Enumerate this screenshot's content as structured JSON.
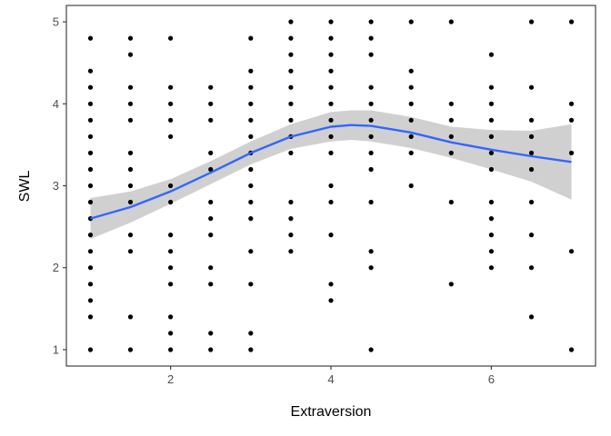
{
  "chart_data": {
    "type": "scatter",
    "xlabel": "Extraversion",
    "ylabel": "SWL",
    "xlim": [
      0.7,
      7.3
    ],
    "ylim": [
      0.8,
      5.2
    ],
    "x_ticks": [
      2,
      4,
      6
    ],
    "y_ticks": [
      1,
      2,
      3,
      4,
      5
    ],
    "grid": false,
    "colors": {
      "points": "#000000",
      "smooth_line": "#3366ff",
      "confidence_band": "#c8c8c8"
    },
    "points": [
      [
        1,
        4.8
      ],
      [
        1,
        4.4
      ],
      [
        1,
        4.2
      ],
      [
        1,
        4.0
      ],
      [
        1,
        3.8
      ],
      [
        1,
        3.6
      ],
      [
        1,
        3.4
      ],
      [
        1,
        3.2
      ],
      [
        1,
        3.0
      ],
      [
        1,
        2.8
      ],
      [
        1,
        2.6
      ],
      [
        1,
        2.4
      ],
      [
        1,
        2.2
      ],
      [
        1,
        2.0
      ],
      [
        1,
        1.8
      ],
      [
        1,
        1.6
      ],
      [
        1,
        1.4
      ],
      [
        1,
        1.0
      ],
      [
        1.5,
        4.8
      ],
      [
        1.5,
        4.6
      ],
      [
        1.5,
        4.2
      ],
      [
        1.5,
        4.0
      ],
      [
        1.5,
        3.8
      ],
      [
        1.5,
        3.4
      ],
      [
        1.5,
        3.2
      ],
      [
        1.5,
        3.0
      ],
      [
        1.5,
        2.8
      ],
      [
        1.5,
        2.4
      ],
      [
        1.5,
        2.2
      ],
      [
        1.5,
        1.4
      ],
      [
        1.5,
        1.0
      ],
      [
        2,
        4.8
      ],
      [
        2,
        4.2
      ],
      [
        2,
        4.0
      ],
      [
        2,
        3.8
      ],
      [
        2,
        3.6
      ],
      [
        2,
        3.0
      ],
      [
        2,
        2.8
      ],
      [
        2,
        2.4
      ],
      [
        2,
        2.2
      ],
      [
        2,
        2.0
      ],
      [
        2,
        1.8
      ],
      [
        2,
        1.4
      ],
      [
        2,
        1.2
      ],
      [
        2,
        1.0
      ],
      [
        2.5,
        4.2
      ],
      [
        2.5,
        4.0
      ],
      [
        2.5,
        3.8
      ],
      [
        2.5,
        3.4
      ],
      [
        2.5,
        3.2
      ],
      [
        2.5,
        2.8
      ],
      [
        2.5,
        2.6
      ],
      [
        2.5,
        2.4
      ],
      [
        2.5,
        2.0
      ],
      [
        2.5,
        1.8
      ],
      [
        2.5,
        1.2
      ],
      [
        2.5,
        1.0
      ],
      [
        3,
        4.8
      ],
      [
        3,
        4.4
      ],
      [
        3,
        4.2
      ],
      [
        3,
        4.0
      ],
      [
        3,
        3.8
      ],
      [
        3,
        3.6
      ],
      [
        3,
        3.4
      ],
      [
        3,
        3.2
      ],
      [
        3,
        3.0
      ],
      [
        3,
        2.8
      ],
      [
        3,
        2.6
      ],
      [
        3,
        2.2
      ],
      [
        3,
        1.8
      ],
      [
        3,
        1.2
      ],
      [
        3,
        1.0
      ],
      [
        3.5,
        5.0
      ],
      [
        3.5,
        4.8
      ],
      [
        3.5,
        4.6
      ],
      [
        3.5,
        4.4
      ],
      [
        3.5,
        4.2
      ],
      [
        3.5,
        4.0
      ],
      [
        3.5,
        3.8
      ],
      [
        3.5,
        3.6
      ],
      [
        3.5,
        3.4
      ],
      [
        3.5,
        2.8
      ],
      [
        3.5,
        2.6
      ],
      [
        3.5,
        2.4
      ],
      [
        3.5,
        2.2
      ],
      [
        4,
        5.0
      ],
      [
        4,
        4.8
      ],
      [
        4,
        4.6
      ],
      [
        4,
        4.4
      ],
      [
        4,
        4.2
      ],
      [
        4,
        4.0
      ],
      [
        4,
        3.8
      ],
      [
        4,
        3.6
      ],
      [
        4,
        3.4
      ],
      [
        4,
        3.0
      ],
      [
        4,
        2.8
      ],
      [
        4,
        2.4
      ],
      [
        4,
        1.8
      ],
      [
        4,
        1.6
      ],
      [
        4.5,
        5.0
      ],
      [
        4.5,
        4.8
      ],
      [
        4.5,
        4.6
      ],
      [
        4.5,
        4.2
      ],
      [
        4.5,
        4.0
      ],
      [
        4.5,
        3.8
      ],
      [
        4.5,
        3.6
      ],
      [
        4.5,
        3.4
      ],
      [
        4.5,
        3.2
      ],
      [
        4.5,
        2.8
      ],
      [
        4.5,
        2.2
      ],
      [
        4.5,
        2.0
      ],
      [
        4.5,
        1.0
      ],
      [
        5,
        5.0
      ],
      [
        5,
        4.4
      ],
      [
        5,
        4.2
      ],
      [
        5,
        4.0
      ],
      [
        5,
        3.8
      ],
      [
        5,
        3.6
      ],
      [
        5,
        3.4
      ],
      [
        5,
        3.0
      ],
      [
        5.5,
        5.0
      ],
      [
        5.5,
        4.0
      ],
      [
        5.5,
        3.8
      ],
      [
        5.5,
        3.6
      ],
      [
        5.5,
        3.4
      ],
      [
        5.5,
        2.8
      ],
      [
        5.5,
        1.8
      ],
      [
        6,
        4.6
      ],
      [
        6,
        4.2
      ],
      [
        6,
        4.0
      ],
      [
        6,
        3.8
      ],
      [
        6,
        3.6
      ],
      [
        6,
        3.4
      ],
      [
        6,
        3.2
      ],
      [
        6,
        2.8
      ],
      [
        6,
        2.6
      ],
      [
        6,
        2.4
      ],
      [
        6,
        2.2
      ],
      [
        6,
        2.0
      ],
      [
        6.5,
        5.0
      ],
      [
        6.5,
        4.2
      ],
      [
        6.5,
        3.8
      ],
      [
        6.5,
        3.6
      ],
      [
        6.5,
        3.4
      ],
      [
        6.5,
        3.2
      ],
      [
        6.5,
        2.8
      ],
      [
        6.5,
        2.4
      ],
      [
        6.5,
        2.0
      ],
      [
        6.5,
        1.4
      ],
      [
        7,
        5.0
      ],
      [
        7,
        4.0
      ],
      [
        7,
        3.8
      ],
      [
        7,
        3.4
      ],
      [
        7,
        2.2
      ],
      [
        7,
        1.0
      ]
    ],
    "smooth_line": {
      "x": [
        1.0,
        1.5,
        2.0,
        2.5,
        3.0,
        3.5,
        4.0,
        4.25,
        4.5,
        5.0,
        5.5,
        6.0,
        6.5,
        7.0
      ],
      "y": [
        2.6,
        2.74,
        2.93,
        3.16,
        3.4,
        3.6,
        3.72,
        3.74,
        3.73,
        3.65,
        3.53,
        3.44,
        3.36,
        3.29
      ],
      "lower": [
        2.35,
        2.55,
        2.78,
        3.02,
        3.26,
        3.45,
        3.54,
        3.56,
        3.54,
        3.46,
        3.34,
        3.2,
        3.05,
        2.83
      ],
      "upper": [
        2.85,
        2.93,
        3.08,
        3.3,
        3.54,
        3.75,
        3.9,
        3.92,
        3.92,
        3.84,
        3.72,
        3.68,
        3.67,
        3.75
      ]
    }
  }
}
